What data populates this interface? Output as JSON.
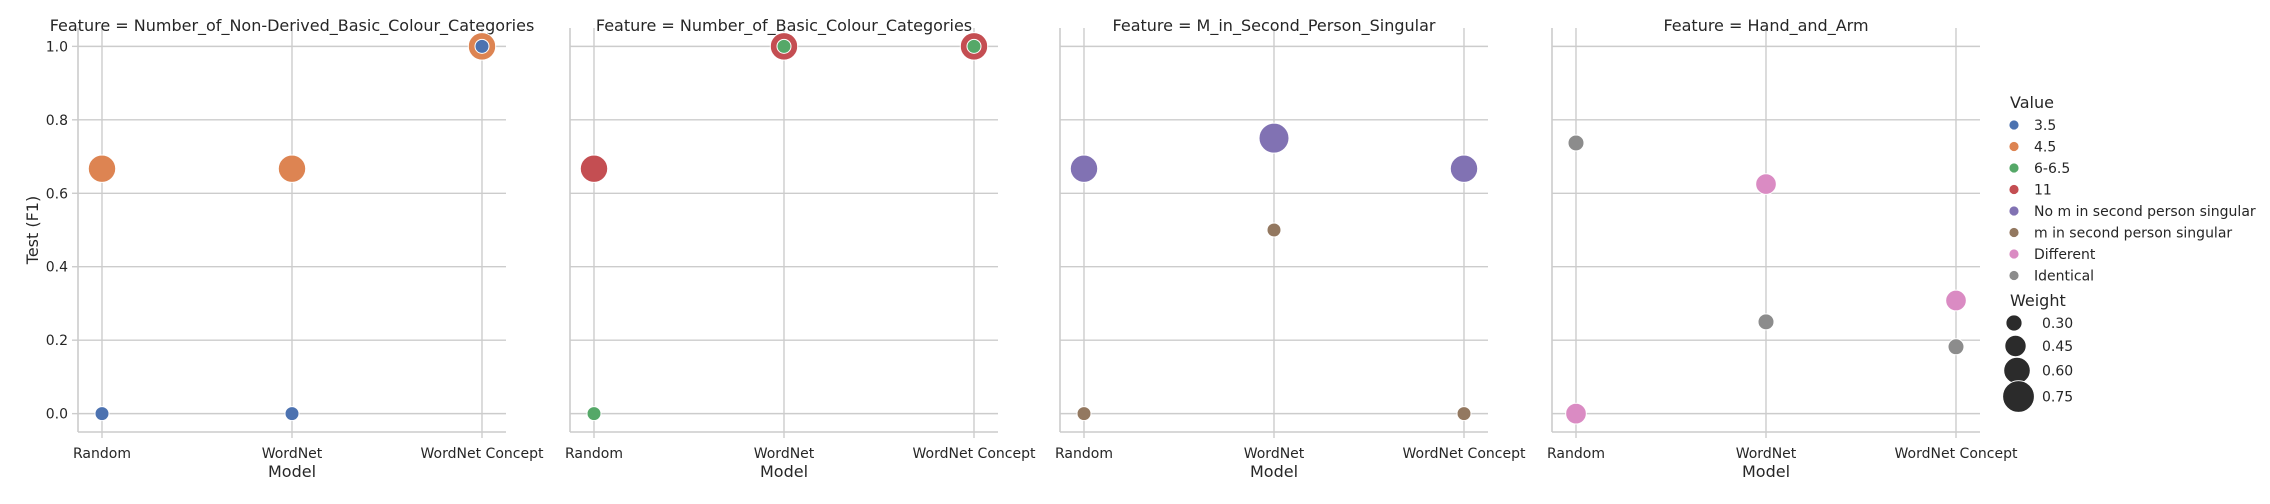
{
  "chart_data": {
    "type": "scatter",
    "facet_label_prefix": "Feature = ",
    "categories": [
      "Random",
      "WordNet",
      "WordNet Concept"
    ],
    "xlabel": "Model",
    "ylabel": "Test (F1)",
    "ylim": [
      -0.05,
      1.05
    ],
    "yticks": [
      "0.0",
      "0.2",
      "0.4",
      "0.6",
      "0.8",
      "1.0"
    ],
    "grid": true,
    "legend_position": "right",
    "hue_legend": {
      "title": "Value",
      "entries": [
        {
          "label": "3.5",
          "color": "#4c72b0"
        },
        {
          "label": "4.5",
          "color": "#dd8452"
        },
        {
          "label": "6-6.5",
          "color": "#55a868"
        },
        {
          "label": "11",
          "color": "#c44e52"
        },
        {
          "label": "No m in second person singular",
          "color": "#8172b3"
        },
        {
          "label": "m in second person singular",
          "color": "#937860"
        },
        {
          "label": "Different",
          "color": "#da8bc3"
        },
        {
          "label": "Identical",
          "color": "#8c8c8c"
        }
      ]
    },
    "size_legend": {
      "title": "Weight",
      "entries": [
        {
          "label": "0.30",
          "weight": 0.3
        },
        {
          "label": "0.45",
          "weight": 0.45
        },
        {
          "label": "0.60",
          "weight": 0.6
        },
        {
          "label": "0.75",
          "weight": 0.75
        }
      ]
    },
    "panels": [
      {
        "feature": "Number_of_Non-Derived_Basic_Colour_Categories",
        "points": [
          {
            "x": "Random",
            "y": 0.667,
            "value": "4.5",
            "weight": 0.667
          },
          {
            "x": "Random",
            "y": 0.0,
            "value": "3.5",
            "weight": 0.0
          },
          {
            "x": "WordNet",
            "y": 0.667,
            "value": "4.5",
            "weight": 0.667
          },
          {
            "x": "WordNet",
            "y": 0.0,
            "value": "3.5",
            "weight": 0.0
          },
          {
            "x": "WordNet Concept",
            "y": 1.0,
            "value": "4.5",
            "weight": 0.667
          },
          {
            "x": "WordNet Concept",
            "y": 1.0,
            "value": "3.5",
            "weight": 0.0
          }
        ]
      },
      {
        "feature": "Number_of_Basic_Colour_Categories",
        "points": [
          {
            "x": "Random",
            "y": 0.667,
            "value": "11",
            "weight": 0.667
          },
          {
            "x": "Random",
            "y": 0.0,
            "value": "6-6.5",
            "weight": 0.0
          },
          {
            "x": "WordNet",
            "y": 1.0,
            "value": "11",
            "weight": 0.667
          },
          {
            "x": "WordNet",
            "y": 1.0,
            "value": "6-6.5",
            "weight": 0.0
          },
          {
            "x": "WordNet Concept",
            "y": 1.0,
            "value": "11",
            "weight": 0.667
          },
          {
            "x": "WordNet Concept",
            "y": 1.0,
            "value": "6-6.5",
            "weight": 0.0
          }
        ]
      },
      {
        "feature": "M_in_Second_Person_Singular",
        "points": [
          {
            "x": "Random",
            "y": 0.667,
            "value": "No m in second person singular",
            "weight": 0.667
          },
          {
            "x": "Random",
            "y": 0.0,
            "value": "m in second person singular",
            "weight": 0.0
          },
          {
            "x": "WordNet",
            "y": 0.75,
            "value": "No m in second person singular",
            "weight": 0.75
          },
          {
            "x": "WordNet",
            "y": 0.5,
            "value": "m in second person singular",
            "weight": 0.0
          },
          {
            "x": "WordNet Concept",
            "y": 0.667,
            "value": "No m in second person singular",
            "weight": 0.667
          },
          {
            "x": "WordNet Concept",
            "y": 0.0,
            "value": "m in second person singular",
            "weight": 0.0
          }
        ]
      },
      {
        "feature": "Hand_and_Arm",
        "points": [
          {
            "x": "Random",
            "y": 0.737,
            "value": "Identical",
            "weight": 0.3
          },
          {
            "x": "Random",
            "y": 0.0,
            "value": "Different",
            "weight": 0.45
          },
          {
            "x": "WordNet",
            "y": 0.625,
            "value": "Different",
            "weight": 0.45
          },
          {
            "x": "WordNet",
            "y": 0.25,
            "value": "Identical",
            "weight": 0.3
          },
          {
            "x": "WordNet Concept",
            "y": 0.308,
            "value": "Different",
            "weight": 0.45
          },
          {
            "x": "WordNet Concept",
            "y": 0.182,
            "value": "Identical",
            "weight": 0.3
          }
        ]
      }
    ]
  }
}
